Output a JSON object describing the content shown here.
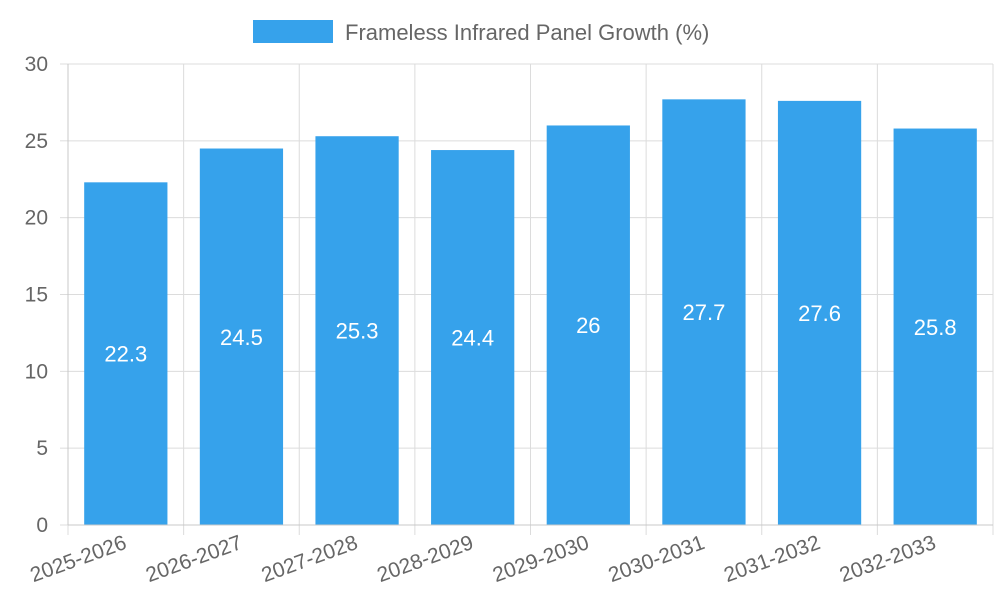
{
  "chart_data": {
    "type": "bar",
    "categories": [
      "2025-2026",
      "2026-2027",
      "2027-2028",
      "2028-2029",
      "2029-2030",
      "2030-2031",
      "2031-2032",
      "2032-2033"
    ],
    "series": [
      {
        "name": "Frameless Infrared Panel Growth (%)",
        "values": [
          22.3,
          24.5,
          25.3,
          24.4,
          26,
          27.7,
          27.6,
          25.8
        ],
        "color": "#36a2eb"
      }
    ],
    "title": "",
    "xlabel": "",
    "ylabel": "",
    "ylim": [
      0,
      30
    ],
    "yticks": [
      0,
      5,
      10,
      15,
      20,
      25,
      30
    ],
    "grid": true,
    "legend": "top-center",
    "data_labels": true
  }
}
